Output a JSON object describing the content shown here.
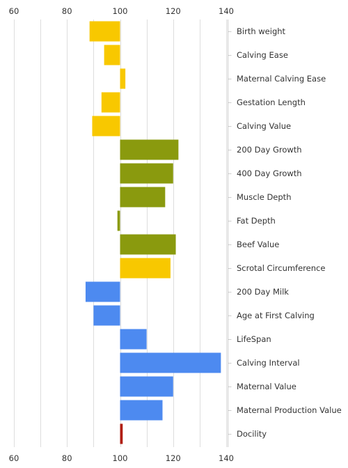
{
  "chart_data": {
    "type": "bar",
    "orientation": "horizontal",
    "baseline": 100,
    "xlim": [
      60,
      140
    ],
    "xticks": [
      "60",
      "80",
      "100",
      "120",
      "140"
    ],
    "grid": true,
    "legend": "none",
    "title": "",
    "xlabel": "",
    "ylabel": "",
    "categories": [
      "Birth weight",
      "Calving Ease",
      "Maternal Calving Ease",
      "Gestation Length",
      "Calving Value",
      "200 Day Growth",
      "400 Day Growth",
      "Muscle Depth",
      "Fat Depth",
      "Beef Value",
      "Scrotal Circumference",
      "200 Day Milk",
      "Age at First Calving",
      "LifeSpan",
      "Calving Interval",
      "Maternal Value",
      "Maternal Production Value",
      "Docility"
    ],
    "values": [
      88.5,
      94,
      102,
      93,
      89.5,
      122,
      120,
      117,
      99,
      121,
      119,
      87,
      90,
      110,
      138,
      120,
      116,
      101
    ],
    "colors": [
      "#f8c800",
      "#f8c800",
      "#f8c800",
      "#f8c800",
      "#f8c800",
      "#8a9a0e",
      "#8a9a0e",
      "#8a9a0e",
      "#8a9a0e",
      "#8a9a0e",
      "#f8c800",
      "#4d8af0",
      "#4d8af0",
      "#4d8af0",
      "#4d8af0",
      "#4d8af0",
      "#4d8af0",
      "#b01e12"
    ],
    "grid_color": "#dddddd",
    "axis_color": "#cccccc"
  }
}
